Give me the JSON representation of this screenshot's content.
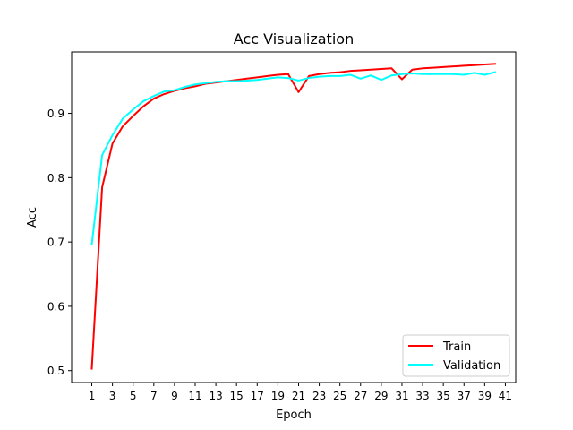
{
  "chart_data": {
    "type": "line",
    "title": "Acc Visualization",
    "xlabel": "Epoch",
    "ylabel": "Acc",
    "xlim": [
      -0.95,
      42.0
    ],
    "ylim": [
      0.4815,
      0.9955
    ],
    "xticks": [
      1,
      3,
      5,
      7,
      9,
      11,
      13,
      15,
      17,
      19,
      21,
      23,
      25,
      27,
      29,
      31,
      33,
      35,
      37,
      39,
      41
    ],
    "xtick_labels": [
      "1",
      "3",
      "5",
      "7",
      "9",
      "11",
      "13",
      "15",
      "17",
      "19",
      "21",
      "23",
      "25",
      "27",
      "29",
      "31",
      "33",
      "35",
      "37",
      "39",
      "41"
    ],
    "yticks": [
      0.5,
      0.6,
      0.7,
      0.8,
      0.9
    ],
    "ytick_labels": [
      "0.5",
      "0.6",
      "0.7",
      "0.8",
      "0.9"
    ],
    "grid": false,
    "legend_position": "lower-right",
    "x": [
      1,
      2,
      3,
      4,
      5,
      6,
      7,
      8,
      9,
      10,
      11,
      12,
      13,
      14,
      15,
      16,
      17,
      18,
      19,
      20,
      21,
      22,
      23,
      24,
      25,
      26,
      27,
      28,
      29,
      30,
      31,
      32,
      33,
      34,
      35,
      36,
      37,
      38,
      39,
      40
    ],
    "series": [
      {
        "name": "Train",
        "color": "#ff0000",
        "values": [
          0.503,
          0.785,
          0.853,
          0.88,
          0.896,
          0.911,
          0.923,
          0.93,
          0.935,
          0.939,
          0.942,
          0.946,
          0.948,
          0.95,
          0.952,
          0.954,
          0.956,
          0.958,
          0.96,
          0.961,
          0.933,
          0.958,
          0.961,
          0.963,
          0.964,
          0.966,
          0.967,
          0.968,
          0.969,
          0.97,
          0.953,
          0.968,
          0.97,
          0.971,
          0.972,
          0.973,
          0.974,
          0.975,
          0.976,
          0.977
        ]
      },
      {
        "name": "Validation",
        "color": "#00ffff",
        "values": [
          0.696,
          0.835,
          0.866,
          0.892,
          0.906,
          0.919,
          0.927,
          0.934,
          0.936,
          0.941,
          0.945,
          0.947,
          0.949,
          0.95,
          0.95,
          0.951,
          0.952,
          0.954,
          0.956,
          0.955,
          0.951,
          0.955,
          0.957,
          0.958,
          0.958,
          0.96,
          0.954,
          0.959,
          0.952,
          0.959,
          0.961,
          0.962,
          0.961,
          0.961,
          0.961,
          0.961,
          0.96,
          0.963,
          0.96,
          0.964
        ]
      }
    ]
  }
}
